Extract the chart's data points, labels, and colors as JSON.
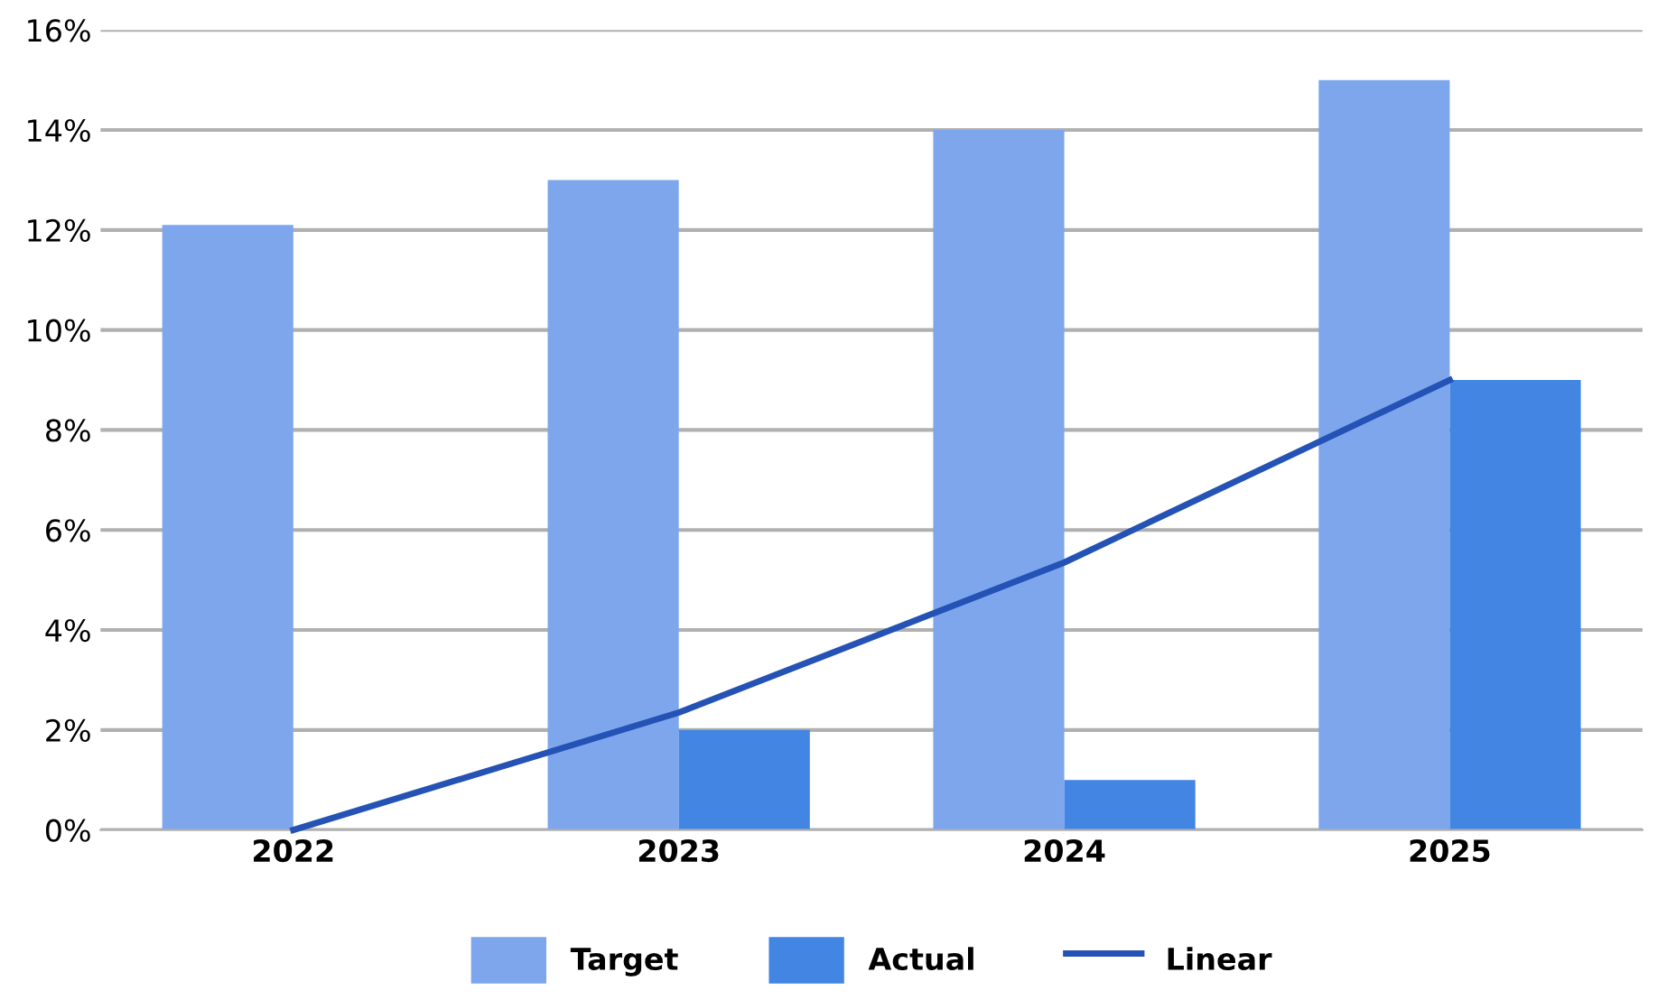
{
  "chart_data": {
    "type": "bar",
    "categories": [
      "2022",
      "2023",
      "2024",
      "2025"
    ],
    "series": [
      {
        "name": "Target",
        "color": "#7da6ed",
        "values": [
          12.1,
          13,
          14,
          15
        ]
      },
      {
        "name": "Actual",
        "color": "#4285e3",
        "values": [
          0,
          2,
          1,
          9
        ]
      },
      {
        "name": "Linear",
        "type": "line",
        "color": "#2452b5",
        "values": [
          0,
          2.35,
          5.35,
          9
        ]
      }
    ],
    "ylim": [
      0,
      16
    ],
    "yticks": [
      {
        "value": 0,
        "label": "0%"
      },
      {
        "value": 2,
        "label": "2%"
      },
      {
        "value": 4,
        "label": "4%"
      },
      {
        "value": 6,
        "label": "6%"
      },
      {
        "value": 8,
        "label": "8%"
      },
      {
        "value": 10,
        "label": "10%"
      },
      {
        "value": 12,
        "label": "12%"
      },
      {
        "value": 14,
        "label": "14%"
      },
      {
        "value": 16,
        "label": "16%"
      }
    ],
    "grid": "y",
    "legend": "bottom",
    "line_style": "solid",
    "marker": "none"
  }
}
